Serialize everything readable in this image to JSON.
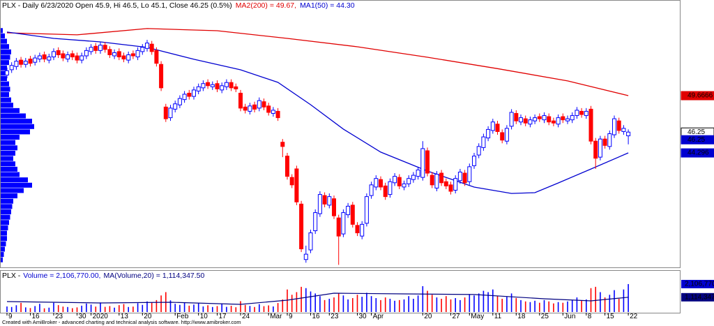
{
  "chart_data": {
    "type": "candlestick",
    "title": "PLX - Daily 6/23/2020 Open 45.9, Hi 46.5, Lo 45.1, Close 46.25 (0.5%)",
    "up_color": "#0000ff",
    "down_color": "#ff0000",
    "ylim": [
      33.63,
      58.31
    ],
    "candles": [
      [
        51.6,
        52.3,
        51.3,
        52.0
      ],
      [
        52.1,
        52.8,
        51.8,
        52.5
      ],
      [
        52.4,
        53.2,
        52.1,
        52.9
      ],
      [
        53.0,
        53.3,
        52.3,
        52.6
      ],
      [
        52.6,
        53.2,
        52.3,
        52.9
      ],
      [
        53.1,
        53.4,
        52.4,
        52.7
      ],
      [
        52.8,
        53.5,
        52.5,
        53.2
      ],
      [
        53.1,
        53.7,
        52.8,
        53.4
      ],
      [
        53.5,
        53.8,
        52.8,
        53.1
      ],
      [
        53.0,
        53.6,
        52.7,
        53.3
      ],
      [
        53.3,
        54.1,
        53.0,
        53.8
      ],
      [
        53.9,
        54.2,
        53.2,
        53.5
      ],
      [
        53.6,
        53.9,
        52.9,
        53.2
      ],
      [
        53.1,
        53.8,
        52.8,
        53.5
      ],
      [
        53.6,
        53.9,
        53.0,
        53.3
      ],
      [
        53.4,
        53.7,
        52.7,
        53.0
      ],
      [
        53.0,
        53.7,
        52.7,
        53.4
      ],
      [
        53.4,
        54.2,
        53.1,
        53.9
      ],
      [
        53.8,
        54.5,
        53.5,
        54.2
      ],
      [
        54.3,
        54.6,
        53.6,
        53.9
      ],
      [
        53.9,
        54.7,
        53.6,
        54.4
      ],
      [
        54.4,
        54.7,
        53.7,
        54.0
      ],
      [
        54.0,
        54.3,
        53.2,
        53.5
      ],
      [
        53.4,
        54.0,
        53.1,
        53.7
      ],
      [
        53.8,
        54.1,
        53.0,
        53.3
      ],
      [
        53.4,
        53.7,
        52.8,
        53.1
      ],
      [
        53.0,
        53.8,
        52.7,
        53.5
      ],
      [
        53.6,
        53.9,
        53.1,
        53.4
      ],
      [
        53.3,
        54.2,
        53.0,
        53.9
      ],
      [
        53.8,
        54.5,
        53.5,
        54.2
      ],
      [
        54.1,
        54.9,
        53.8,
        54.6
      ],
      [
        54.5,
        54.8,
        53.5,
        53.8
      ],
      [
        53.9,
        54.2,
        52.4,
        52.7
      ],
      [
        52.6,
        52.9,
        50.1,
        50.4
      ],
      [
        48.6,
        48.9,
        47.2,
        47.5
      ],
      [
        47.6,
        48.8,
        47.3,
        48.5
      ],
      [
        48.4,
        49.2,
        48.1,
        48.9
      ],
      [
        48.8,
        49.7,
        48.5,
        49.4
      ],
      [
        49.3,
        50.1,
        49.0,
        49.8
      ],
      [
        49.9,
        50.2,
        49.3,
        49.6
      ],
      [
        49.6,
        50.5,
        49.3,
        50.2
      ],
      [
        50.1,
        50.8,
        49.8,
        50.5
      ],
      [
        50.4,
        51.1,
        50.1,
        50.8
      ],
      [
        50.9,
        51.2,
        50.3,
        50.6
      ],
      [
        50.5,
        51.0,
        50.2,
        50.7
      ],
      [
        50.8,
        51.1,
        50.0,
        50.3
      ],
      [
        50.2,
        50.9,
        49.9,
        50.6
      ],
      [
        50.5,
        51.2,
        50.2,
        50.9
      ],
      [
        50.9,
        51.2,
        50.1,
        50.4
      ],
      [
        50.5,
        50.8,
        50.0,
        50.3
      ],
      [
        49.9,
        50.2,
        48.2,
        48.5
      ],
      [
        48.6,
        48.9,
        48.0,
        48.3
      ],
      [
        48.2,
        49.0,
        47.9,
        48.7
      ],
      [
        48.8,
        49.1,
        48.1,
        48.4
      ],
      [
        48.5,
        49.5,
        48.2,
        49.2
      ],
      [
        49.1,
        49.4,
        48.3,
        48.6
      ],
      [
        48.7,
        49.0,
        47.8,
        48.1
      ],
      [
        48.0,
        48.6,
        47.7,
        48.3
      ],
      [
        48.2,
        48.5,
        47.3,
        47.6
      ],
      [
        45.3,
        45.6,
        43.9,
        44.9
      ],
      [
        44.0,
        44.3,
        41.8,
        42.1
      ],
      [
        42.0,
        42.3,
        41.0,
        41.3
      ],
      [
        42.8,
        43.1,
        39.4,
        39.7
      ],
      [
        39.5,
        39.8,
        35.0,
        35.3
      ],
      [
        34.3,
        35.6,
        34.0,
        34.8
      ],
      [
        35.2,
        37.1,
        34.9,
        36.8
      ],
      [
        37.0,
        39.0,
        36.7,
        38.7
      ],
      [
        38.6,
        40.7,
        38.3,
        40.4
      ],
      [
        40.3,
        40.6,
        39.2,
        39.5
      ],
      [
        39.4,
        40.5,
        39.1,
        40.2
      ],
      [
        40.0,
        40.3,
        38.1,
        38.4
      ],
      [
        38.2,
        38.5,
        33.8,
        36.5
      ],
      [
        36.7,
        39.0,
        36.4,
        38.7
      ],
      [
        38.5,
        39.6,
        38.2,
        39.3
      ],
      [
        39.4,
        39.7,
        37.3,
        37.6
      ],
      [
        37.5,
        37.8,
        36.5,
        36.8
      ],
      [
        36.5,
        37.9,
        36.2,
        37.6
      ],
      [
        37.7,
        40.5,
        37.4,
        40.2
      ],
      [
        40.3,
        41.6,
        40.0,
        41.3
      ],
      [
        41.1,
        42.2,
        40.8,
        41.9
      ],
      [
        41.8,
        42.1,
        40.8,
        41.1
      ],
      [
        41.2,
        41.5,
        39.9,
        40.2
      ],
      [
        40.4,
        41.9,
        40.1,
        41.6
      ],
      [
        41.5,
        42.4,
        41.2,
        42.1
      ],
      [
        42.0,
        42.3,
        40.9,
        41.2
      ],
      [
        41.1,
        41.7,
        40.8,
        41.4
      ],
      [
        41.4,
        42.2,
        41.1,
        41.9
      ],
      [
        41.8,
        42.5,
        41.5,
        42.2
      ],
      [
        42.1,
        43.0,
        41.8,
        42.7
      ],
      [
        42.0,
        45.4,
        41.7,
        44.7
      ],
      [
        44.5,
        44.8,
        42.1,
        42.4
      ],
      [
        42.2,
        42.5,
        41.0,
        41.3
      ],
      [
        41.0,
        42.6,
        40.7,
        42.3
      ],
      [
        42.4,
        42.7,
        41.2,
        41.5
      ],
      [
        41.6,
        41.9,
        40.9,
        41.2
      ],
      [
        41.3,
        41.6,
        40.4,
        40.7
      ],
      [
        40.8,
        42.2,
        40.5,
        41.9
      ],
      [
        41.7,
        42.8,
        41.4,
        42.5
      ],
      [
        42.4,
        42.7,
        41.2,
        41.5
      ],
      [
        41.6,
        43.3,
        41.3,
        43.0
      ],
      [
        43.1,
        44.3,
        42.8,
        44.0
      ],
      [
        44.1,
        45.2,
        43.8,
        44.9
      ],
      [
        44.8,
        46.1,
        44.5,
        45.8
      ],
      [
        45.7,
        46.8,
        45.4,
        46.5
      ],
      [
        46.4,
        47.5,
        46.1,
        47.2
      ],
      [
        47.0,
        47.3,
        46.0,
        46.3
      ],
      [
        46.2,
        46.5,
        45.2,
        45.5
      ],
      [
        45.4,
        46.9,
        45.1,
        46.6
      ],
      [
        46.8,
        48.4,
        46.5,
        48.1
      ],
      [
        48.0,
        48.3,
        47.0,
        47.3
      ],
      [
        47.2,
        47.9,
        46.9,
        47.6
      ],
      [
        47.5,
        47.8,
        46.8,
        47.1
      ],
      [
        47.0,
        47.7,
        46.7,
        47.4
      ],
      [
        47.3,
        47.9,
        47.0,
        47.6
      ],
      [
        47.7,
        48.0,
        47.2,
        47.5
      ],
      [
        47.4,
        48.1,
        47.1,
        47.8
      ],
      [
        47.7,
        48.0,
        46.9,
        47.2
      ],
      [
        47.3,
        47.6,
        46.8,
        47.1
      ],
      [
        47.0,
        47.9,
        46.7,
        47.6
      ],
      [
        47.7,
        48.0,
        47.1,
        47.4
      ],
      [
        47.3,
        47.8,
        47.0,
        47.5
      ],
      [
        47.4,
        48.1,
        47.1,
        47.8
      ],
      [
        47.8,
        48.6,
        47.5,
        48.3
      ],
      [
        48.2,
        48.5,
        47.6,
        47.9
      ],
      [
        47.8,
        48.5,
        47.5,
        48.2
      ],
      [
        48.4,
        48.7,
        45.1,
        45.4
      ],
      [
        45.4,
        45.7,
        42.8,
        43.8
      ],
      [
        43.9,
        45.9,
        43.6,
        45.6
      ],
      [
        45.6,
        45.9,
        44.7,
        45.0
      ],
      [
        44.9,
        46.4,
        44.6,
        46.1
      ],
      [
        46.0,
        47.8,
        45.7,
        47.5
      ],
      [
        47.3,
        47.6,
        46.1,
        46.4
      ],
      [
        46.3,
        46.9,
        46.0,
        46.6
      ],
      [
        45.9,
        46.5,
        45.1,
        46.25
      ]
    ],
    "indicators": [
      {
        "name": "MA2(200) = 49.67,",
        "color": "#e00000",
        "x": [
          0,
          15,
          30,
          45,
          60,
          75,
          90,
          105,
          120,
          133
        ],
        "values": [
          55.56,
          55.37,
          55.96,
          55.76,
          55.04,
          54.25,
          53.27,
          52.2,
          51.05,
          49.67
        ]
      },
      {
        "name": "MA1(50) = 44.30",
        "color": "#0000d0",
        "x": [
          0,
          10,
          20,
          30,
          40,
          50,
          58,
          65,
          72,
          80,
          90,
          100,
          108,
          113,
          118,
          125,
          133
        ],
        "values": [
          55.63,
          55.04,
          54.71,
          54.19,
          53.08,
          52.09,
          50.91,
          48.82,
          46.53,
          44.37,
          42.6,
          41.09,
          40.5,
          40.57,
          41.48,
          42.79,
          44.3
        ]
      }
    ],
    "price_labels": [
      {
        "value": 49.6666,
        "color": "#e00000",
        "text_color": "#ffffff"
      },
      {
        "value": 46.25,
        "color": "#ffffff",
        "text_color": "#000000"
      },
      {
        "value": 46.25,
        "color": "#0000d0",
        "text_color": "#ffffff"
      },
      {
        "value": 44.296,
        "color": "#0000d0",
        "text_color": "#ffffff"
      }
    ],
    "volume_profile": {
      "color": "#0000ff",
      "bins": [
        34,
        34.5,
        35,
        35.5,
        36,
        36.5,
        37,
        37.5,
        38,
        38.5,
        39,
        39.5,
        40,
        40.5,
        41,
        41.5,
        42,
        42.5,
        43,
        43.5,
        44,
        44.5,
        45,
        45.5,
        46,
        46.5,
        47,
        47.5,
        48,
        48.5,
        49,
        49.5,
        50,
        50.5,
        51,
        51.5,
        52,
        52.5,
        53,
        53.5,
        54,
        54.5,
        55,
        55.5,
        56
      ],
      "values": [
        2,
        3,
        4,
        5,
        6,
        6,
        7,
        8,
        9,
        10,
        11,
        12,
        16,
        22,
        30,
        26,
        18,
        16,
        14,
        12,
        14,
        16,
        14,
        18,
        28,
        32,
        30,
        24,
        18,
        12,
        10,
        8,
        9,
        8,
        6,
        5,
        6,
        8,
        9,
        10,
        8,
        6,
        4,
        2
      ]
    },
    "volume": {
      "title_parts": [
        "PLX -",
        "Volume = 2,106,770.00,",
        "MA(Volume,20) = 1,114,347.50"
      ],
      "title_colors": [
        "#000000",
        "#0000d0",
        "#000080"
      ],
      "ylim": [
        0,
        2630000
      ],
      "values": [
        420000,
        380000,
        510000,
        690000,
        350000,
        300000,
        450000,
        620000,
        280000,
        330000,
        700000,
        520000,
        410000,
        380000,
        290000,
        350000,
        480000,
        640000,
        560000,
        410000,
        720000,
        390000,
        450000,
        330000,
        520000,
        600000,
        380000,
        410000,
        670000,
        540000,
        800000,
        720000,
        900000,
        1250000,
        1500000,
        880000,
        620000,
        540000,
        700000,
        480000,
        560000,
        650000,
        420000,
        510000,
        380000,
        450000,
        610000,
        390000,
        470000,
        360000,
        820000,
        540000,
        460000,
        380000,
        590000,
        440000,
        500000,
        420000,
        680000,
        950000,
        1700000,
        1300000,
        1500000,
        1900000,
        1800000,
        1550000,
        1400000,
        1200000,
        900000,
        1000000,
        1100000,
        1400000,
        1250000,
        950000,
        1050000,
        1300000,
        1150000,
        1450000,
        1200000,
        1050000,
        900000,
        1100000,
        1000000,
        850000,
        900000,
        950000,
        1200000,
        1000000,
        1250000,
        1950000,
        1600000,
        1300000,
        1100000,
        1000000,
        1200000,
        950000,
        1050000,
        900000,
        1100000,
        1350000,
        1250000,
        1400000,
        1600000,
        1500000,
        1700000,
        1200000,
        1000000,
        1150000,
        1400000,
        1050000,
        900000,
        800000,
        750000,
        850000,
        700000,
        900000,
        800000,
        650000,
        750000,
        700000,
        800000,
        900000,
        1100000,
        850000,
        950000,
        1800000,
        1900000,
        1500000,
        1100000,
        1300000,
        1650000,
        1000000,
        1700000,
        2106770
      ],
      "ma": {
        "color": "#000080",
        "x": [
          0,
          20,
          35,
          50,
          60,
          70,
          85,
          100,
          115,
          125,
          133
        ],
        "values": [
          790000,
          685000,
          738000,
          580000,
          896000,
          1420000,
          1370000,
          1320000,
          1000000,
          843000,
          1114347.5
        ]
      },
      "labels": [
        {
          "value": 2106770,
          "label": "2,106,770",
          "color": "#0000d0"
        },
        {
          "value": 1114347,
          "label": "1,114,347",
          "color": "#000080"
        }
      ]
    },
    "x_labels": [
      {
        "label": "9",
        "index": 0
      },
      {
        "label": "16",
        "index": 5
      },
      {
        "label": "23",
        "index": 10
      },
      {
        "label": "30",
        "index": 15
      },
      {
        "label": "2020",
        "index": 18
      },
      {
        "label": "13",
        "index": 24
      },
      {
        "label": "20",
        "index": 29
      },
      {
        "label": "Feb",
        "index": 36
      },
      {
        "label": "10",
        "index": 41
      },
      {
        "label": "17",
        "index": 45
      },
      {
        "label": "24",
        "index": 50
      },
      {
        "label": "Mar",
        "index": 56
      },
      {
        "label": "9",
        "index": 60
      },
      {
        "label": "16",
        "index": 65
      },
      {
        "label": "23",
        "index": 69
      },
      {
        "label": "30",
        "index": 75
      },
      {
        "label": "Apr",
        "index": 78
      },
      {
        "label": "20",
        "index": 89
      },
      {
        "label": "27",
        "index": 95
      },
      {
        "label": "May",
        "index": 99
      },
      {
        "label": "11",
        "index": 104
      },
      {
        "label": "18",
        "index": 109
      },
      {
        "label": "25",
        "index": 114
      },
      {
        "label": "Jun",
        "index": 119
      },
      {
        "label": "8",
        "index": 124
      },
      {
        "label": "15",
        "index": 128
      },
      {
        "label": "22",
        "index": 133
      }
    ],
    "footer": "Created with AmiBroker - advanced charting and technical analysis software. http://www.amibroker.com"
  }
}
